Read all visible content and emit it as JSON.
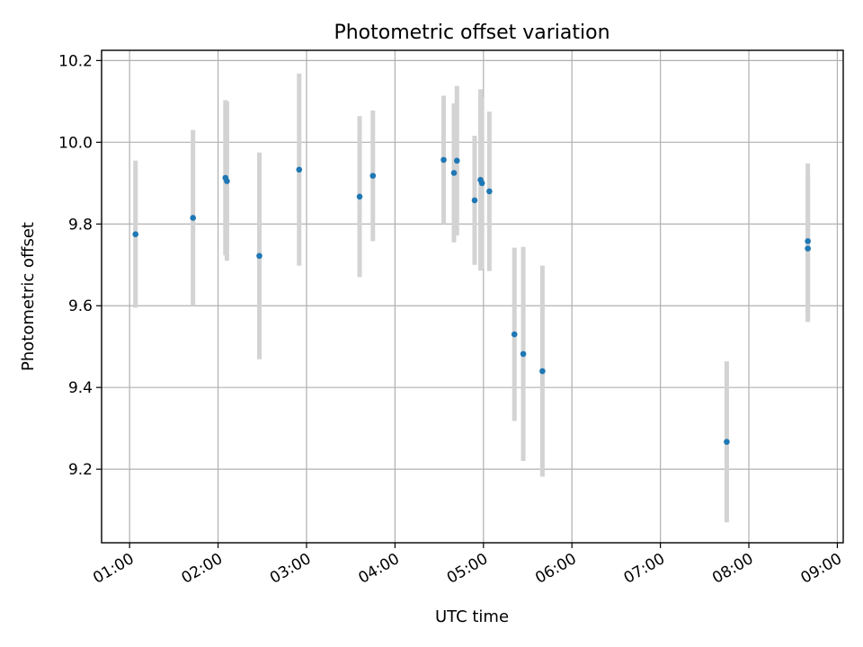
{
  "chart_data": {
    "type": "scatter",
    "title": "Photometric offset variation",
    "xlabel": "UTC time",
    "ylabel": "Photometric offset",
    "xlim": [
      "00:41",
      "09:04"
    ],
    "ylim": [
      9.02,
      10.225
    ],
    "grid": true,
    "point_color": "#1f77b4",
    "errorbar_color": "#d3d3d3",
    "x_ticks": [
      "01:00",
      "02:00",
      "03:00",
      "04:00",
      "05:00",
      "06:00",
      "07:00",
      "08:00",
      "09:00"
    ],
    "y_ticks": [
      9.2,
      9.4,
      9.6,
      9.8,
      10.0,
      10.2
    ],
    "y_tick_labels": [
      "9.2",
      "9.4",
      "9.6",
      "9.8",
      "10.0",
      "10.2"
    ],
    "series": [
      {
        "points": [
          {
            "x": "01:04",
            "y": 9.775,
            "err": 0.18
          },
          {
            "x": "01:43",
            "y": 9.815,
            "err": 0.215
          },
          {
            "x": "02:05",
            "y": 9.913,
            "err": 0.19
          },
          {
            "x": "02:06",
            "y": 9.905,
            "err": 0.195
          },
          {
            "x": "02:28",
            "y": 9.722,
            "err": 0.253
          },
          {
            "x": "02:55",
            "y": 9.933,
            "err": 0.235
          },
          {
            "x": "03:36",
            "y": 9.867,
            "err": 0.197
          },
          {
            "x": "03:45",
            "y": 9.918,
            "err": 0.16
          },
          {
            "x": "04:33",
            "y": 9.957,
            "err": 0.157
          },
          {
            "x": "04:40",
            "y": 9.925,
            "err": 0.17
          },
          {
            "x": "04:42",
            "y": 9.955,
            "err": 0.183
          },
          {
            "x": "04:54",
            "y": 9.858,
            "err": 0.158
          },
          {
            "x": "04:58",
            "y": 9.908,
            "err": 0.222
          },
          {
            "x": "04:59",
            "y": 9.9,
            "err": 0.21
          },
          {
            "x": "05:04",
            "y": 9.88,
            "err": 0.195
          },
          {
            "x": "05:21",
            "y": 9.53,
            "err": 0.212
          },
          {
            "x": "05:27",
            "y": 9.482,
            "err": 0.262
          },
          {
            "x": "05:40",
            "y": 9.44,
            "err": 0.258
          },
          {
            "x": "07:45",
            "y": 9.267,
            "err": 0.197
          },
          {
            "x": "08:40",
            "y": 9.758,
            "err": 0.19
          },
          {
            "x": "08:40",
            "y": 9.74,
            "err": 0.18
          }
        ]
      }
    ]
  }
}
